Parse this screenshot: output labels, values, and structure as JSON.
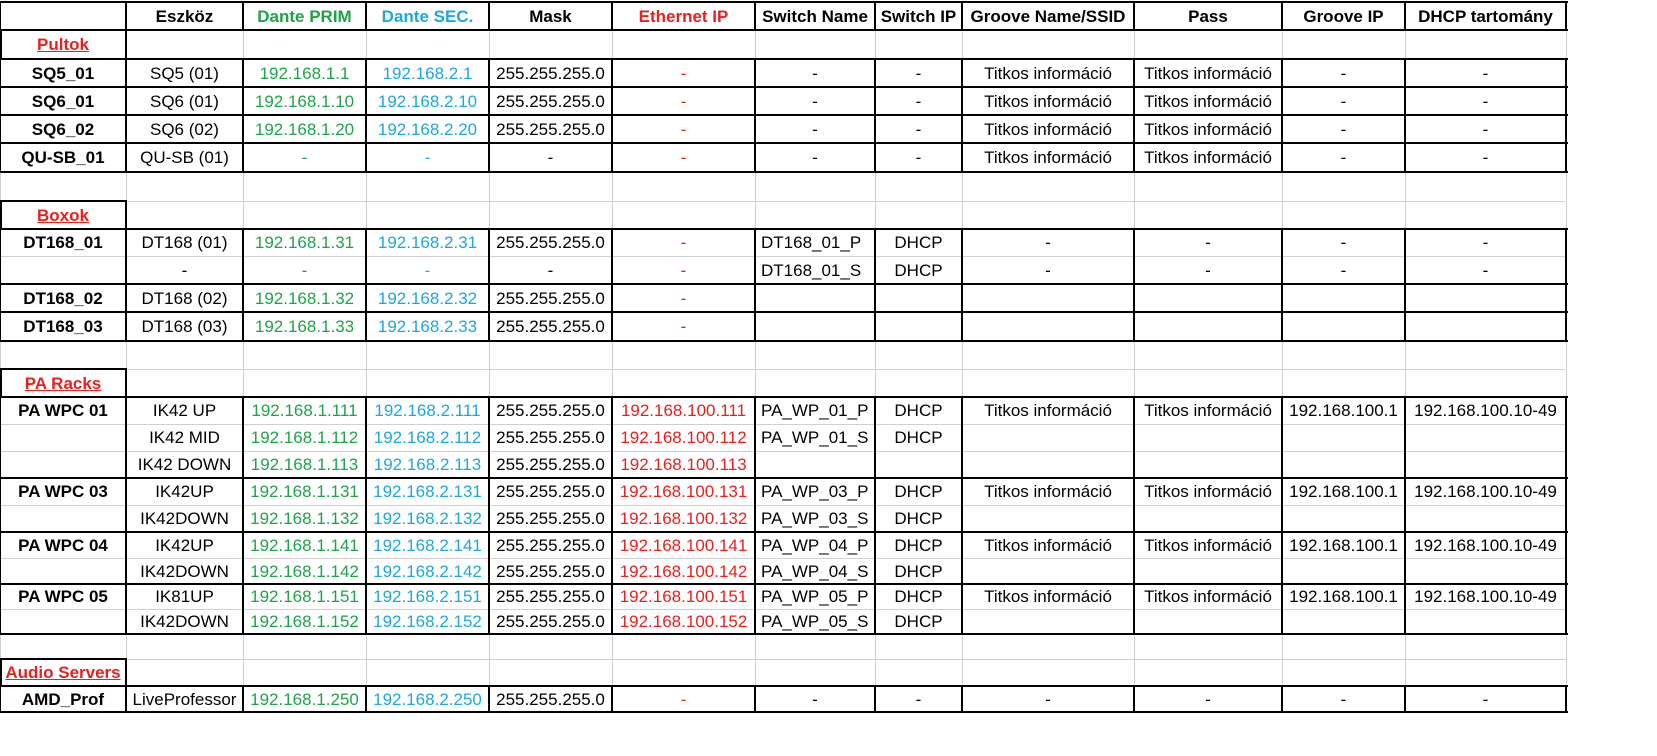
{
  "colors": {
    "dante_prim": "#1fa34a",
    "dante_sec": "#1ea7dd",
    "ethernet": "#e8201e",
    "section": "#e8201e",
    "text": "#000000"
  },
  "headers": [
    "",
    "Eszköz",
    "Dante PRIM",
    "Dante SEC.",
    "Mask",
    "Ethernet IP",
    "Switch Name",
    "Switch IP",
    "Groove Name/SSID",
    "Pass",
    "Groove IP",
    "DHCP tartomány"
  ],
  "header_colors": [
    "text",
    "text",
    "dante_prim",
    "dante_sec",
    "text",
    "ethernet",
    "text",
    "text",
    "text",
    "text",
    "text",
    "text"
  ],
  "sections": {
    "pultok": "Pultok",
    "boxok": "Boxok",
    "pa_racks": "PA Racks",
    "audio_servers": "Audio Servers"
  },
  "rows": [
    [
      "SQ5_01",
      "SQ5 (01)",
      "192.168.1.1",
      "192.168.2.1",
      "255.255.255.0",
      "-",
      "-",
      "-",
      "Titkos információ",
      "Titkos információ",
      "-",
      "-"
    ],
    [
      "SQ6_01",
      "SQ6 (01)",
      "192.168.1.10",
      "192.168.2.10",
      "255.255.255.0",
      "-",
      "-",
      "-",
      "Titkos információ",
      "Titkos információ",
      "-",
      "-"
    ],
    [
      "SQ6_02",
      "SQ6 (02)",
      "192.168.1.20",
      "192.168.2.20",
      "255.255.255.0",
      "-",
      "-",
      "-",
      "Titkos információ",
      "Titkos információ",
      "-",
      "-"
    ],
    [
      "QU-SB_01",
      "QU-SB (01)",
      "-",
      "-",
      "-",
      "-",
      "-",
      "-",
      "Titkos információ",
      "Titkos információ",
      "-",
      "-"
    ],
    [
      "DT168_01",
      "DT168 (01)",
      "192.168.1.31",
      "192.168.2.31",
      "255.255.255.0",
      "-",
      "DT168_01_P",
      "DHCP",
      "-",
      "-",
      "-",
      "-"
    ],
    [
      "",
      "-",
      "-",
      "-",
      "-",
      "-",
      "DT168_01_S",
      "DHCP",
      "-",
      "-",
      "-",
      "-"
    ],
    [
      "DT168_02",
      "DT168 (02)",
      "192.168.1.32",
      "192.168.2.32",
      "255.255.255.0",
      "-",
      "",
      "",
      "",
      "",
      "",
      ""
    ],
    [
      "DT168_03",
      "DT168 (03)",
      "192.168.1.33",
      "192.168.2.33",
      "255.255.255.0",
      "-",
      "",
      "",
      "",
      "",
      "",
      ""
    ],
    [
      "PA WPC 01",
      "IK42 UP",
      "192.168.1.111",
      "192.168.2.111",
      "255.255.255.0",
      "192.168.100.111",
      "PA_WP_01_P",
      "DHCP",
      "Titkos információ",
      "Titkos információ",
      "192.168.100.1",
      "192.168.100.10-49"
    ],
    [
      "",
      "IK42 MID",
      "192.168.1.112",
      "192.168.2.112",
      "255.255.255.0",
      "192.168.100.112",
      "PA_WP_01_S",
      "DHCP",
      "",
      "",
      "",
      ""
    ],
    [
      "",
      "IK42 DOWN",
      "192.168.1.113",
      "192.168.2.113",
      "255.255.255.0",
      "192.168.100.113",
      "",
      "",
      "",
      "",
      "",
      ""
    ],
    [
      "PA WPC 03",
      "IK42UP",
      "192.168.1.131",
      "192.168.2.131",
      "255.255.255.0",
      "192.168.100.131",
      "PA_WP_03_P",
      "DHCP",
      "Titkos információ",
      "Titkos információ",
      "192.168.100.1",
      "192.168.100.10-49"
    ],
    [
      "",
      "IK42DOWN",
      "192.168.1.132",
      "192.168.2.132",
      "255.255.255.0",
      "192.168.100.132",
      "PA_WP_03_S",
      "DHCP",
      "",
      "",
      "",
      ""
    ],
    [
      "PA WPC 04",
      "IK42UP",
      "192.168.1.141",
      "192.168.2.141",
      "255.255.255.0",
      "192.168.100.141",
      "PA_WP_04_P",
      "DHCP",
      "Titkos információ",
      "Titkos információ",
      "192.168.100.1",
      "192.168.100.10-49"
    ],
    [
      "",
      "IK42DOWN",
      "192.168.1.142",
      "192.168.2.142",
      "255.255.255.0",
      "192.168.100.142",
      "PA_WP_04_S",
      "DHCP",
      "",
      "",
      "",
      ""
    ],
    [
      "PA WPC 05",
      "IK81UP",
      "192.168.1.151",
      "192.168.2.151",
      "255.255.255.0",
      "192.168.100.151",
      "PA_WP_05_P",
      "DHCP",
      "Titkos információ",
      "Titkos információ",
      "192.168.100.1",
      "192.168.100.10-49"
    ],
    [
      "",
      "IK42DOWN",
      "192.168.1.152",
      "192.168.2.152",
      "255.255.255.0",
      "192.168.100.152",
      "PA_WP_05_S",
      "DHCP",
      "",
      "",
      "",
      ""
    ],
    [
      "AMD_Prof",
      "LiveProfessor",
      "192.168.1.250",
      "192.168.2.250",
      "255.255.255.0",
      "-",
      "-",
      "-",
      "-",
      "-",
      "-",
      "-"
    ]
  ]
}
